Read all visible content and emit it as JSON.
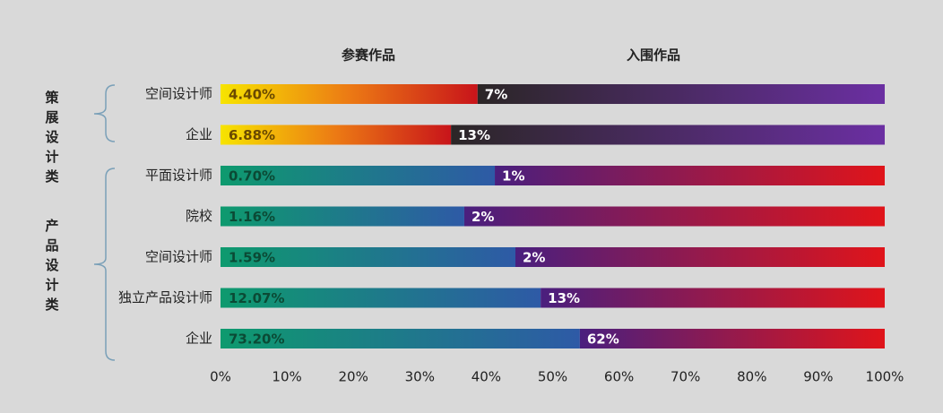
{
  "chart_data": {
    "type": "stacked-bar",
    "series": [
      {
        "name": "参赛作品"
      },
      {
        "name": "入围作品"
      }
    ],
    "groups": [
      {
        "name": "策展设计类",
        "colors": [
          [
            "#f7e400",
            "#ec7a14",
            "#c8141a"
          ],
          [
            "#2b2626",
            "#6b2fa2"
          ]
        ],
        "label_color": "#6b4a00",
        "categories": [
          "空间设计师",
          "企业"
        ],
        "values": [
          [
            38.7,
            34.7
          ],
          [
            61.3,
            65.3
          ]
        ],
        "labels": [
          [
            "4.40%",
            "6.88%"
          ],
          [
            "7%",
            "13%"
          ]
        ]
      },
      {
        "name": "产品设计类",
        "colors": [
          [
            "#0e9a6e",
            "#2e5aa6"
          ],
          [
            "#4a1f7e",
            "#e0141a"
          ]
        ],
        "label_color": "#0b4a35",
        "categories": [
          "平面设计师",
          "院校",
          "空间设计师",
          "独立产品设计师",
          "企业"
        ],
        "values": [
          [
            41.3,
            36.7,
            44.4,
            48.2,
            54.1
          ],
          [
            58.7,
            63.3,
            55.6,
            51.8,
            45.9
          ]
        ],
        "labels": [
          [
            "0.70%",
            "1.16%",
            "1.59%",
            "12.07%",
            "73.20%"
          ],
          [
            "1%",
            "2%",
            "2%",
            "13%",
            "62%"
          ]
        ]
      }
    ],
    "xlim": [
      0,
      100
    ],
    "xticks": [
      {
        "value": 0,
        "label": "0%"
      },
      {
        "value": 10,
        "label": "10%"
      },
      {
        "value": 20,
        "label": "20%"
      },
      {
        "value": 30,
        "label": "30%"
      },
      {
        "value": 40,
        "label": "40%"
      },
      {
        "value": 50,
        "label": "50%"
      },
      {
        "value": 60,
        "label": "60%"
      },
      {
        "value": 70,
        "label": "70%"
      },
      {
        "value": 80,
        "label": "80%"
      },
      {
        "value": 90,
        "label": "90%"
      },
      {
        "value": 100,
        "label": "100%"
      }
    ]
  }
}
